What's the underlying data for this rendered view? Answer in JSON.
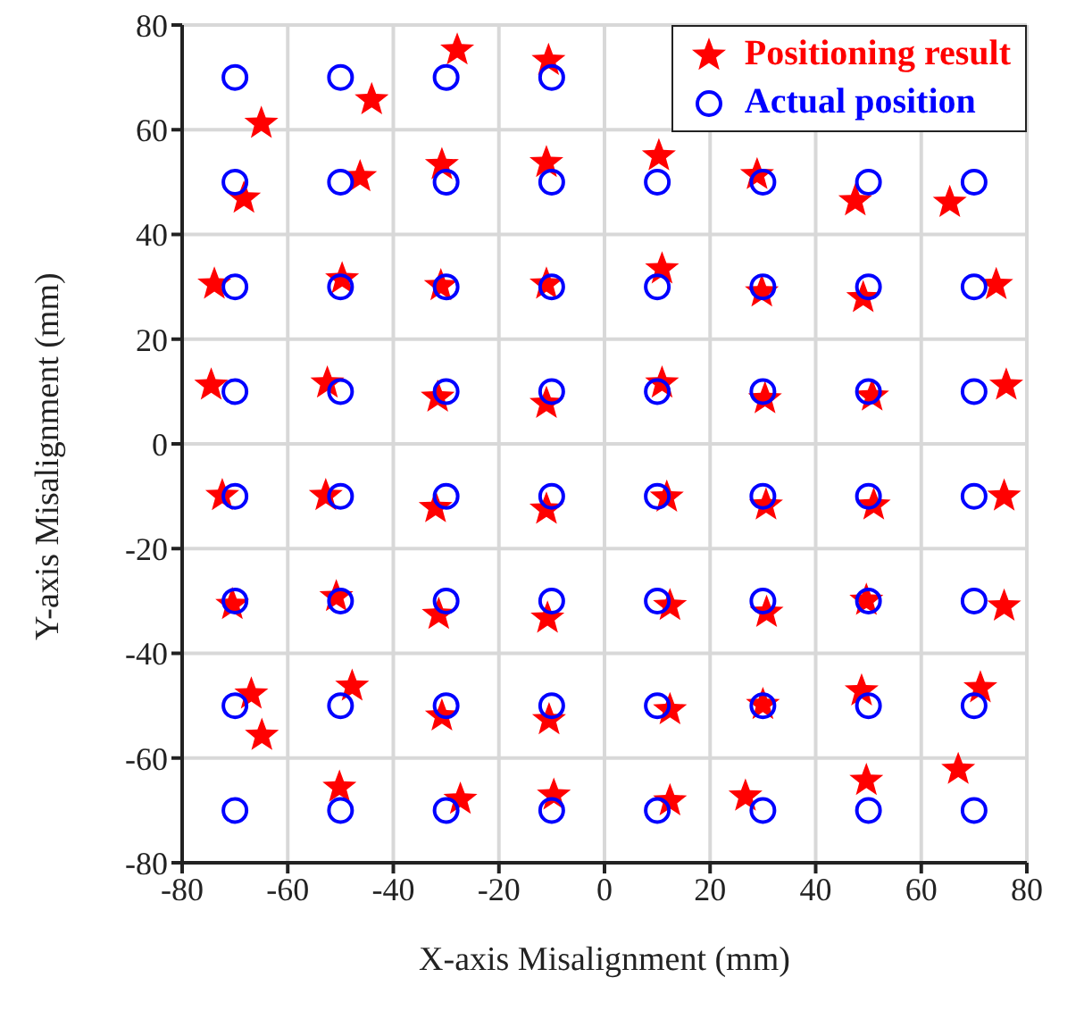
{
  "chart_data": {
    "type": "scatter",
    "xlabel": "X-axis Misalignment (mm)",
    "ylabel": "Y-axis Misalignment (mm)",
    "xlim": [
      -80,
      80
    ],
    "ylim": [
      -80,
      80
    ],
    "xticks": [
      -80,
      -60,
      -40,
      -20,
      0,
      20,
      40,
      60,
      80
    ],
    "yticks": [
      -80,
      -60,
      -40,
      -20,
      0,
      20,
      40,
      60,
      80
    ],
    "grid": true,
    "legend": "top right",
    "series": [
      {
        "name": "Positioning result",
        "color": "#ff0000",
        "marker": "star",
        "x": [
          -65,
          -44.1,
          -27.9,
          -10.6,
          -68.3,
          -46.3,
          -30.8,
          -11,
          10.3,
          28.9,
          47.5,
          65.4,
          -73.9,
          -49.7,
          -31,
          -11,
          10.9,
          29.8,
          49,
          74.2,
          -74.5,
          -52.5,
          -31.6,
          -11,
          10.9,
          30.4,
          50.7,
          76.1,
          -72.4,
          -52.8,
          -32,
          -11,
          11.8,
          30.6,
          51,
          75.7,
          -70.5,
          -50.8,
          -31.4,
          -10.8,
          12.4,
          30.7,
          49.6,
          75.7,
          -66.9,
          -64.9,
          -47.8,
          -30.8,
          -10.5,
          12.4,
          30,
          48.7,
          71.2,
          -50.2,
          -27.3,
          -9.6,
          12.4,
          26.7,
          49.6,
          67
        ],
        "values": [
          61.2,
          65.7,
          75.2,
          73.2,
          46.9,
          51,
          53.3,
          53.7,
          55,
          51.4,
          46.4,
          46.1,
          30.5,
          31.5,
          30.2,
          30.5,
          33.4,
          29,
          27.9,
          30.4,
          11.2,
          11.6,
          8.9,
          7.7,
          11.6,
          8.6,
          9.1,
          11.2,
          -9.9,
          -9.9,
          -12.2,
          -12.5,
          -10.2,
          -11.7,
          -11.7,
          -10,
          -30.7,
          -29.2,
          -32.6,
          -33.3,
          -30.9,
          -32.2,
          -29.9,
          -31,
          -47.8,
          -55.7,
          -46.3,
          -52,
          -52.7,
          -50.8,
          -49.8,
          -47.2,
          -46.6,
          -65.6,
          -67.9,
          -67.1,
          -68.2,
          -67.3,
          -64.3,
          -62.2
        ]
      },
      {
        "name": "Actual position",
        "color": "#0000ff",
        "marker": "circle",
        "x": [
          -70,
          -50,
          -30,
          -10,
          -70,
          -50,
          -30,
          -10,
          10,
          30,
          50,
          70,
          -70,
          -50,
          -30,
          -10,
          10,
          30,
          50,
          70,
          -70,
          -50,
          -30,
          -10,
          10,
          30,
          50,
          70,
          -70,
          -50,
          -30,
          -10,
          10,
          30,
          50,
          70,
          -70,
          -50,
          -30,
          -10,
          10,
          30,
          50,
          70,
          -70,
          -50,
          -30,
          -10,
          10,
          30,
          50,
          70,
          -70,
          -50,
          -30,
          -10,
          10,
          30,
          50,
          70
        ],
        "values": [
          70,
          70,
          70,
          70,
          50,
          50,
          50,
          50,
          50,
          50,
          50,
          50,
          30,
          30,
          30,
          30,
          30,
          30,
          30,
          30,
          10,
          10,
          10,
          10,
          10,
          10,
          10,
          10,
          -10,
          -10,
          -10,
          -10,
          -10,
          -10,
          -10,
          -10,
          -30,
          -30,
          -30,
          -30,
          -30,
          -30,
          -30,
          -30,
          -50,
          -50,
          -50,
          -50,
          -50,
          -50,
          -50,
          -50,
          -70,
          -70,
          -70,
          -70,
          -70,
          -70,
          -70,
          -70
        ]
      }
    ]
  }
}
